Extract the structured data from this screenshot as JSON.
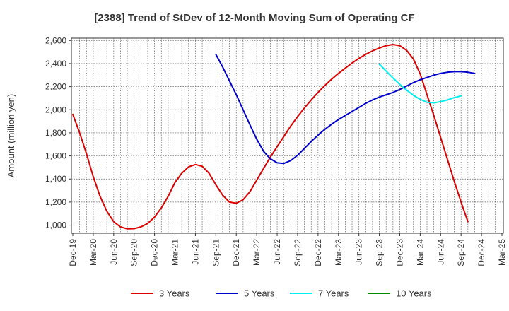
{
  "chart_data": {
    "type": "line",
    "title": "[2388]  Trend of StDev of 12-Month Moving Sum of Operating CF",
    "ylabel": "Amount (million yen)",
    "xlabel": "",
    "ylim": [
      930,
      2620
    ],
    "yticks": [
      1000,
      1200,
      1400,
      1600,
      1800,
      2000,
      2200,
      2400,
      2600
    ],
    "ytick_labels": [
      "1,000",
      "1,200",
      "1,400",
      "1,600",
      "1,800",
      "2,000",
      "2,200",
      "2,400",
      "2,600"
    ],
    "x_tick_labels": [
      "Dec-19",
      "Mar-20",
      "Jun-20",
      "Sep-20",
      "Dec-20",
      "Mar-21",
      "Jun-21",
      "Sep-21",
      "Dec-21",
      "Mar-22",
      "Jun-22",
      "Sep-22",
      "Dec-22",
      "Mar-23",
      "Jun-23",
      "Sep-23",
      "Dec-23",
      "Mar-24",
      "Jun-24",
      "Sep-24",
      "Dec-24",
      "Mar-25"
    ],
    "grid": true,
    "legend_position": "bottom",
    "series": [
      {
        "name": "3 Years",
        "color": "#dd0000",
        "start_month_index": 0,
        "values": [
          1960,
          1800,
          1620,
          1420,
          1250,
          1120,
          1030,
          985,
          968,
          970,
          985,
          1015,
          1070,
          1150,
          1250,
          1370,
          1450,
          1505,
          1525,
          1510,
          1450,
          1350,
          1260,
          1200,
          1190,
          1220,
          1290,
          1390,
          1490,
          1590,
          1680,
          1770,
          1860,
          1940,
          2015,
          2085,
          2150,
          2210,
          2265,
          2315,
          2360,
          2405,
          2445,
          2480,
          2510,
          2535,
          2555,
          2565,
          2555,
          2515,
          2440,
          2310,
          2130,
          1950,
          1760,
          1570,
          1380,
          1200,
          1030
        ]
      },
      {
        "name": "5 Years",
        "color": "#0000cc",
        "start_month_index": 21,
        "values": [
          2480,
          2370,
          2250,
          2130,
          2000,
          1870,
          1745,
          1640,
          1575,
          1540,
          1535,
          1560,
          1605,
          1665,
          1725,
          1780,
          1830,
          1875,
          1915,
          1950,
          1985,
          2020,
          2055,
          2085,
          2110,
          2130,
          2150,
          2175,
          2205,
          2235,
          2260,
          2280,
          2300,
          2315,
          2325,
          2330,
          2330,
          2325,
          2315
        ]
      },
      {
        "name": "7 Years",
        "color": "#00eeee",
        "start_month_index": 45,
        "values": [
          2395,
          2335,
          2275,
          2220,
          2170,
          2125,
          2090,
          2065,
          2060,
          2070,
          2085,
          2105,
          2120
        ]
      },
      {
        "name": "10 Years",
        "color": "#008800",
        "start_month_index": 0,
        "values": []
      }
    ]
  }
}
